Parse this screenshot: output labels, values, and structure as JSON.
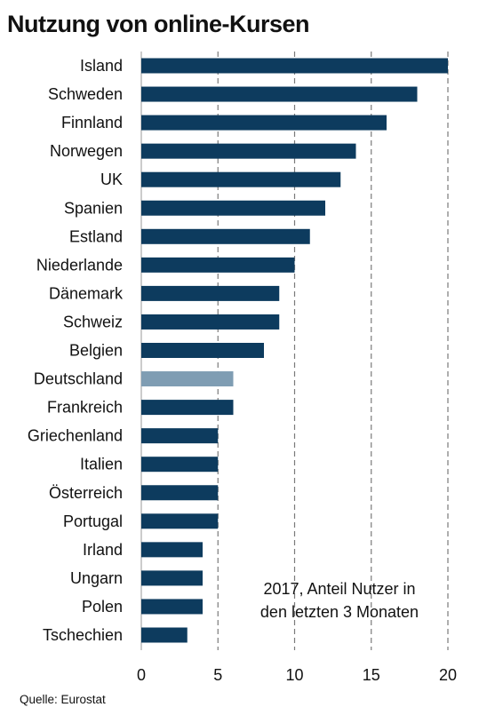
{
  "chart_data": {
    "type": "bar",
    "orientation": "horizontal",
    "title": "Nutzung von online-Kursen",
    "categories": [
      "Island",
      "Schweden",
      "Finnland",
      "Norwegen",
      "UK",
      "Spanien",
      "Estland",
      "Niederlande",
      "Dänemark",
      "Schweiz",
      "Belgien",
      "Deutschland",
      "Frankreich",
      "Griechenland",
      "Italien",
      "Österreich",
      "Portugal",
      "Irland",
      "Ungarn",
      "Polen",
      "Tschechien"
    ],
    "values": [
      20,
      18,
      16,
      14,
      13,
      12,
      11,
      10,
      9,
      9,
      8,
      6,
      6,
      5,
      5,
      5,
      5,
      4,
      4,
      4,
      3
    ],
    "highlight": "Deutschland",
    "xlim": [
      0,
      20
    ],
    "xticks": [
      "0",
      "5",
      "10",
      "15",
      "20"
    ],
    "xlabel": "",
    "ylabel": "",
    "grid": "vertical dashed",
    "annotation": [
      "2017, Anteil Nutzer in",
      "den letzten 3 Monaten"
    ],
    "source": "Quelle: Eurostat",
    "colors": {
      "bar": "#0d3b5e",
      "highlight": "#7f9db3",
      "grid": "#7a7a7a",
      "axis": "#999999"
    }
  }
}
